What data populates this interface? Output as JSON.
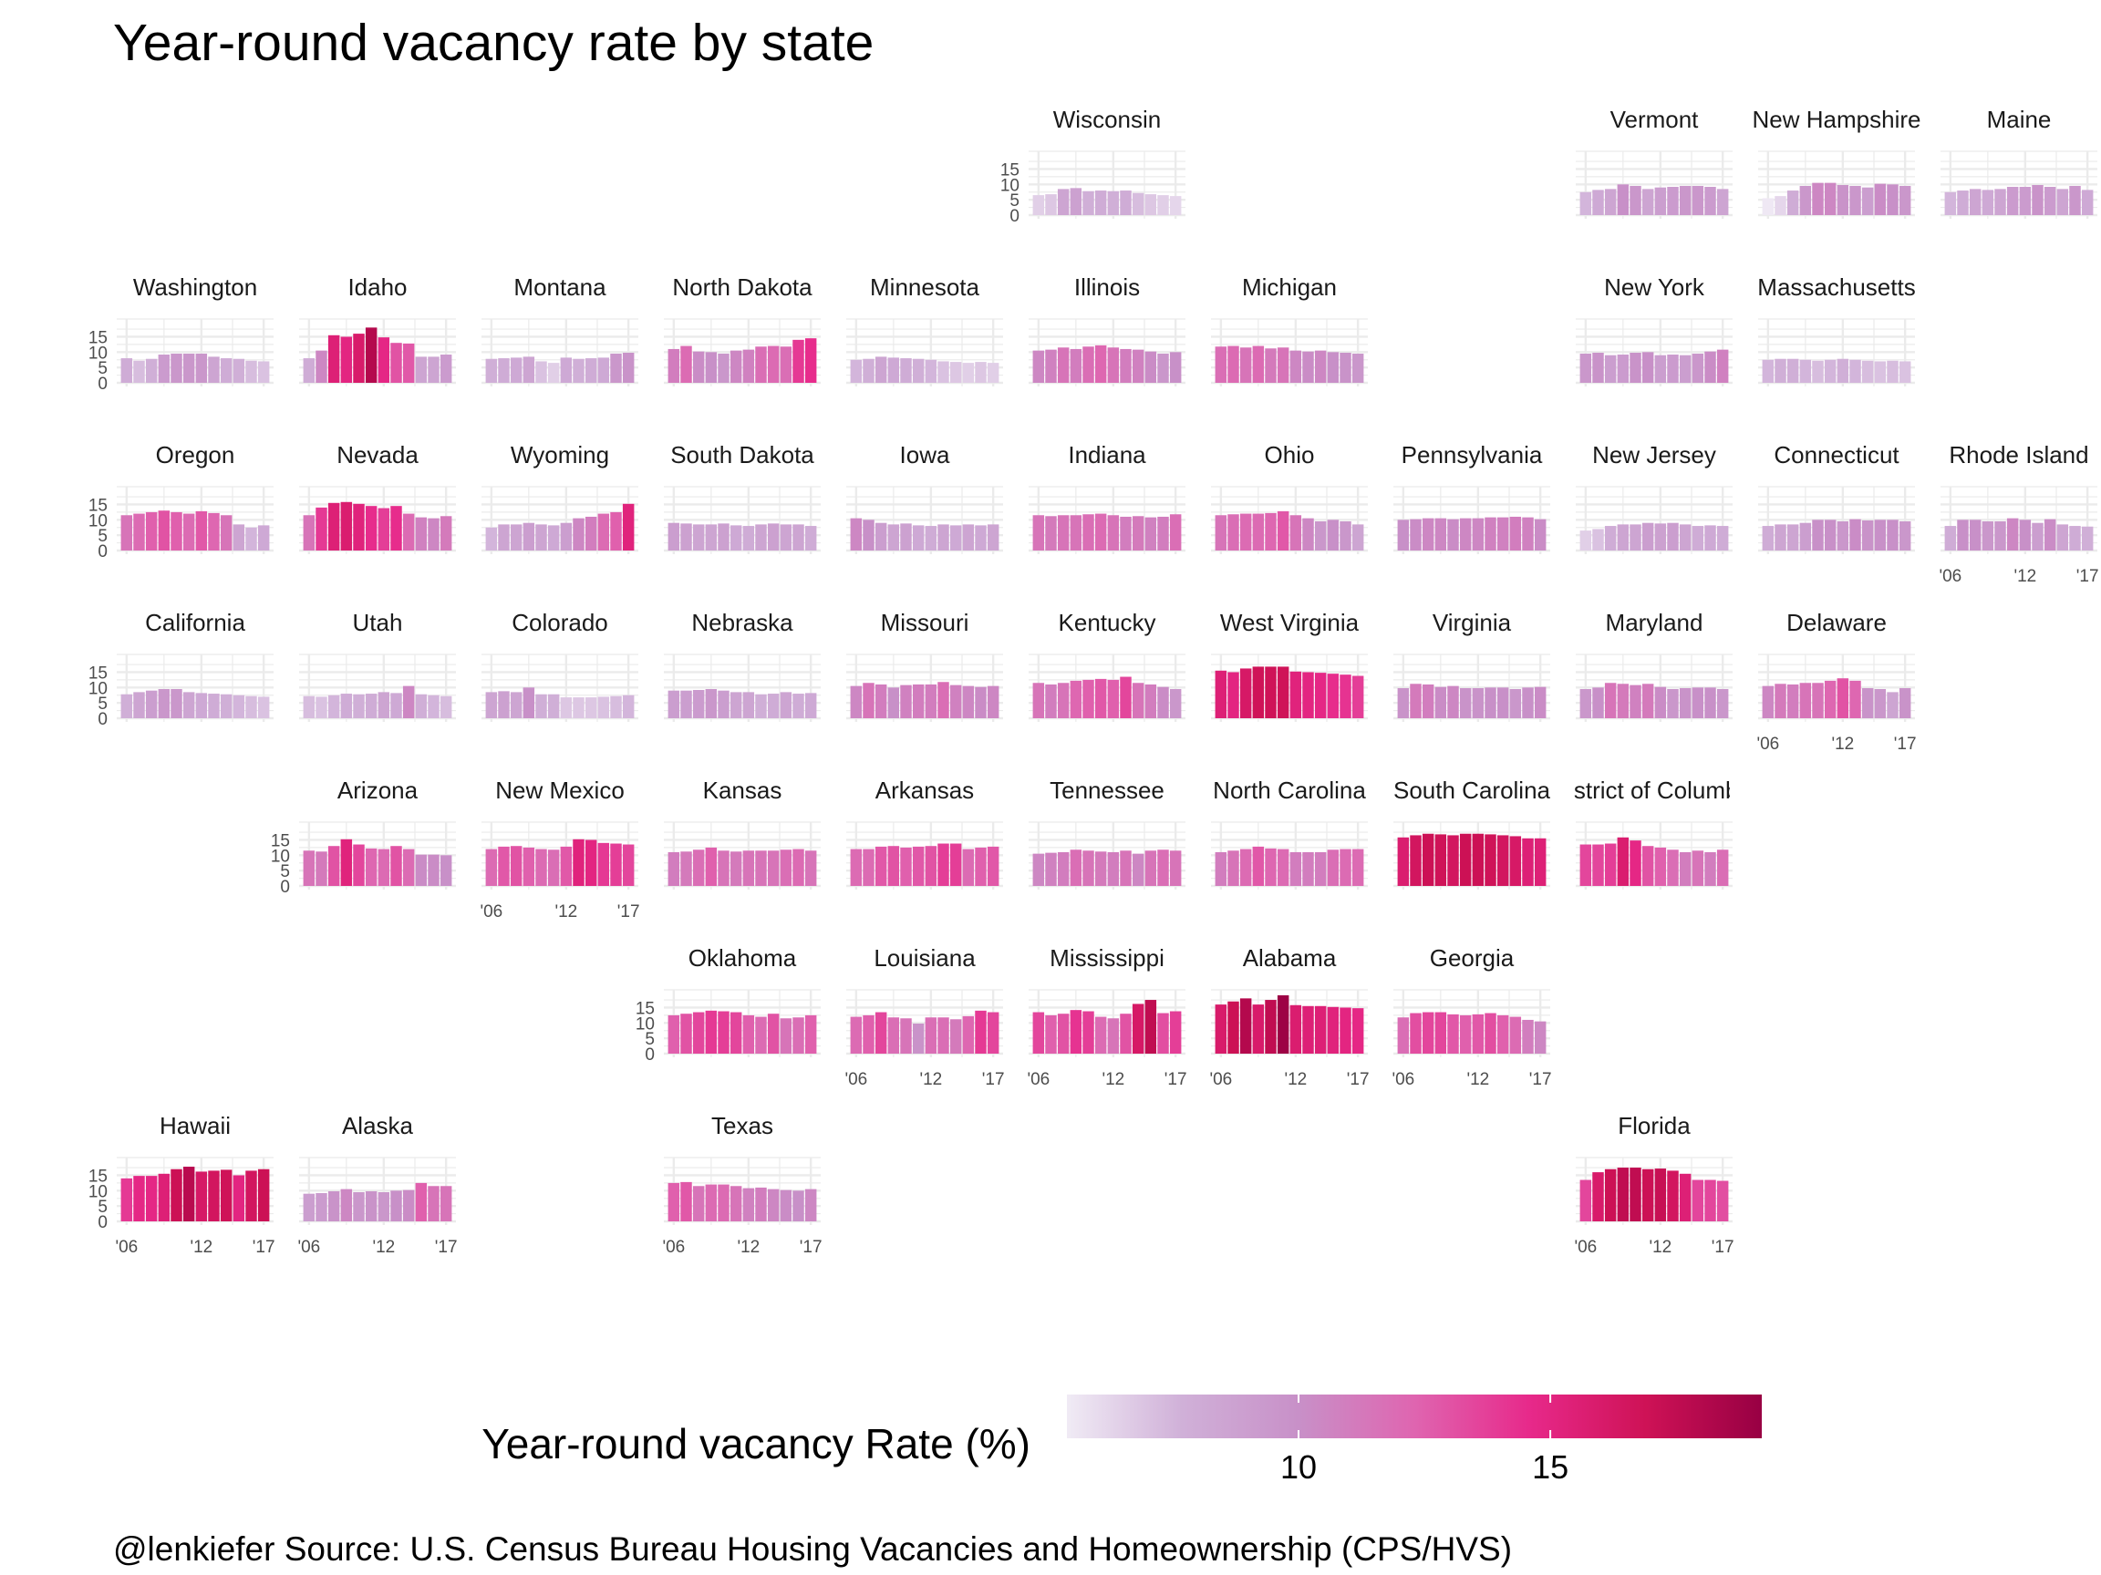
{
  "chart_data": {
    "type": "bar",
    "title": "Year-round vacancy rate by state",
    "caption": "@lenkiefer Source: U.S. Census Bureau Housing Vacancies and Homeownership (CPS/HVS)",
    "years": [
      2006,
      2007,
      2008,
      2009,
      2010,
      2011,
      2012,
      2013,
      2014,
      2015,
      2016,
      2017
    ],
    "y_ticks": [
      0,
      5,
      10,
      15
    ],
    "x_tick_labels": [
      "'06",
      "'12",
      "'17"
    ],
    "ylim": [
      0,
      19
    ],
    "legend": {
      "title": "Year-round vacancy Rate (%)",
      "ticks": [
        10,
        15
      ],
      "range": [
        5.4,
        19.2
      ],
      "colors": [
        "#f0ebf5",
        "#d0b0d8",
        "#c890c8",
        "#df65b0",
        "#e7298a",
        "#ce1256",
        "#980043"
      ]
    },
    "states": [
      {
        "name": "Wisconsin",
        "row": 0,
        "col": 5,
        "values": [
          6.5,
          6.8,
          8.5,
          8.8,
          7.8,
          8.0,
          7.8,
          8.0,
          7.2,
          6.8,
          6.5,
          6.2
        ]
      },
      {
        "name": "Vermont",
        "row": 0,
        "col": 8,
        "values": [
          7.5,
          8.2,
          8.5,
          10.0,
          9.5,
          8.5,
          9.0,
          9.2,
          9.5,
          9.5,
          9.2,
          8.5
        ]
      },
      {
        "name": "New Hampshire",
        "row": 0,
        "col": 9,
        "values": [
          5.5,
          6.2,
          8.0,
          9.5,
          10.5,
          10.5,
          9.8,
          9.5,
          9.0,
          10.2,
          10.0,
          9.5
        ]
      },
      {
        "name": "Maine",
        "row": 0,
        "col": 10,
        "values": [
          7.5,
          8.0,
          8.5,
          8.2,
          8.5,
          9.2,
          9.2,
          9.8,
          9.2,
          8.5,
          9.5,
          8.2
        ]
      },
      {
        "name": "Washington",
        "row": 1,
        "col": 0,
        "values": [
          8.0,
          7.2,
          7.8,
          9.2,
          9.5,
          9.5,
          9.5,
          8.5,
          8.0,
          7.8,
          7.2,
          7.0
        ]
      },
      {
        "name": "Idaho",
        "row": 1,
        "col": 1,
        "values": [
          8.0,
          10.5,
          15.5,
          15.0,
          16.0,
          18.0,
          14.8,
          13.0,
          12.8,
          8.5,
          8.5,
          9.2
        ]
      },
      {
        "name": "Montana",
        "row": 1,
        "col": 2,
        "values": [
          7.8,
          8.0,
          8.2,
          8.5,
          7.0,
          6.5,
          8.2,
          7.8,
          8.0,
          8.2,
          9.5,
          9.8
        ]
      },
      {
        "name": "North Dakota",
        "row": 1,
        "col": 3,
        "values": [
          11.0,
          12.0,
          10.2,
          10.0,
          9.5,
          10.5,
          10.8,
          11.8,
          12.0,
          11.8,
          14.0,
          14.5
        ]
      },
      {
        "name": "Minnesota",
        "row": 1,
        "col": 4,
        "values": [
          7.5,
          7.8,
          8.5,
          8.2,
          8.0,
          7.8,
          7.5,
          7.0,
          6.8,
          6.5,
          6.8,
          6.5
        ]
      },
      {
        "name": "Illinois",
        "row": 1,
        "col": 5,
        "values": [
          10.5,
          10.8,
          11.5,
          11.0,
          11.8,
          12.2,
          11.5,
          11.0,
          10.8,
          10.2,
          9.5,
          10.0
        ]
      },
      {
        "name": "Michigan",
        "row": 1,
        "col": 6,
        "values": [
          11.8,
          12.0,
          11.5,
          12.0,
          11.2,
          11.5,
          10.5,
          10.2,
          10.5,
          10.0,
          9.8,
          9.5
        ]
      },
      {
        "name": "New York",
        "row": 1,
        "col": 8,
        "values": [
          9.5,
          9.8,
          9.0,
          9.2,
          9.8,
          10.0,
          9.0,
          9.2,
          9.0,
          9.5,
          10.2,
          10.8
        ]
      },
      {
        "name": "Massachusetts",
        "row": 1,
        "col": 9,
        "values": [
          7.5,
          7.8,
          7.8,
          7.5,
          7.2,
          7.5,
          7.8,
          7.5,
          7.2,
          7.0,
          7.2,
          7.0
        ]
      },
      {
        "name": "Oregon",
        "row": 2,
        "col": 0,
        "values": [
          11.5,
          12.0,
          12.5,
          13.0,
          12.5,
          12.0,
          12.8,
          12.2,
          11.5,
          8.5,
          7.5,
          8.2
        ]
      },
      {
        "name": "Nevada",
        "row": 2,
        "col": 1,
        "values": [
          11.5,
          14.0,
          15.5,
          15.8,
          15.2,
          14.5,
          13.8,
          14.5,
          12.0,
          10.8,
          10.5,
          11.2
        ]
      },
      {
        "name": "Wyoming",
        "row": 2,
        "col": 2,
        "values": [
          7.5,
          8.5,
          8.5,
          9.0,
          8.5,
          8.2,
          9.0,
          10.5,
          11.0,
          12.0,
          12.5,
          15.2
        ]
      },
      {
        "name": "South Dakota",
        "row": 2,
        "col": 3,
        "values": [
          9.0,
          8.8,
          8.5,
          8.5,
          8.8,
          8.2,
          8.0,
          8.5,
          8.8,
          8.5,
          8.5,
          8.0
        ]
      },
      {
        "name": "Iowa",
        "row": 2,
        "col": 4,
        "values": [
          10.5,
          10.0,
          9.0,
          8.5,
          8.8,
          8.2,
          8.0,
          8.5,
          8.2,
          8.5,
          8.2,
          8.5
        ]
      },
      {
        "name": "Indiana",
        "row": 2,
        "col": 5,
        "values": [
          11.5,
          11.2,
          11.5,
          11.5,
          11.8,
          12.0,
          11.5,
          11.0,
          11.2,
          10.8,
          11.0,
          11.8
        ]
      },
      {
        "name": "Ohio",
        "row": 2,
        "col": 6,
        "values": [
          11.5,
          11.8,
          12.0,
          12.0,
          12.2,
          12.8,
          11.5,
          10.5,
          9.5,
          10.0,
          9.5,
          8.5
        ]
      },
      {
        "name": "Pennsylvania",
        "row": 2,
        "col": 7,
        "values": [
          10.0,
          10.2,
          10.5,
          10.5,
          10.2,
          10.5,
          10.5,
          10.8,
          10.8,
          11.0,
          10.8,
          10.2
        ]
      },
      {
        "name": "New Jersey",
        "row": 2,
        "col": 8,
        "values": [
          6.5,
          7.0,
          8.0,
          8.5,
          8.5,
          9.0,
          8.8,
          9.0,
          8.5,
          8.0,
          8.2,
          8.0
        ]
      },
      {
        "name": "Connecticut",
        "row": 2,
        "col": 9,
        "values": [
          8.0,
          8.5,
          8.5,
          9.0,
          10.0,
          10.0,
          9.5,
          10.2,
          9.8,
          10.0,
          10.0,
          9.5
        ]
      },
      {
        "name": "Rhode Island",
        "row": 2,
        "col": 10,
        "values": [
          8.0,
          10.0,
          10.0,
          9.5,
          9.5,
          10.5,
          10.0,
          9.0,
          10.2,
          8.5,
          8.0,
          7.8
        ]
      },
      {
        "name": "California",
        "row": 3,
        "col": 0,
        "values": [
          7.8,
          8.5,
          9.0,
          9.5,
          9.5,
          8.5,
          8.2,
          8.0,
          7.8,
          7.5,
          7.2,
          7.0
        ]
      },
      {
        "name": "Utah",
        "row": 3,
        "col": 1,
        "values": [
          7.2,
          7.0,
          7.5,
          8.0,
          7.8,
          8.0,
          8.5,
          8.2,
          10.5,
          7.8,
          7.5,
          7.2
        ]
      },
      {
        "name": "Colorado",
        "row": 3,
        "col": 2,
        "values": [
          8.5,
          8.8,
          8.5,
          10.0,
          7.8,
          7.8,
          6.8,
          6.8,
          6.8,
          7.0,
          7.2,
          7.5
        ]
      },
      {
        "name": "Nebraska",
        "row": 3,
        "col": 3,
        "values": [
          9.0,
          9.0,
          9.2,
          9.5,
          9.0,
          8.5,
          8.5,
          7.8,
          8.0,
          8.5,
          8.0,
          8.2
        ]
      },
      {
        "name": "Missouri",
        "row": 3,
        "col": 4,
        "values": [
          10.5,
          11.5,
          11.0,
          10.0,
          10.8,
          11.0,
          11.0,
          11.8,
          10.8,
          10.5,
          10.2,
          10.5
        ]
      },
      {
        "name": "Kentucky",
        "row": 3,
        "col": 5,
        "values": [
          11.5,
          11.0,
          11.5,
          12.2,
          12.5,
          12.8,
          12.5,
          13.5,
          11.5,
          11.0,
          10.2,
          9.5
        ]
      },
      {
        "name": "West Virginia",
        "row": 3,
        "col": 6,
        "values": [
          15.5,
          15.0,
          16.2,
          16.8,
          16.8,
          16.8,
          15.2,
          15.0,
          14.8,
          14.5,
          14.2,
          13.8
        ]
      },
      {
        "name": "Virginia",
        "row": 3,
        "col": 7,
        "values": [
          9.8,
          11.2,
          11.0,
          10.2,
          10.5,
          9.8,
          9.8,
          10.0,
          10.0,
          9.5,
          10.0,
          10.2
        ]
      },
      {
        "name": "Maryland",
        "row": 3,
        "col": 8,
        "values": [
          9.5,
          10.0,
          11.5,
          11.2,
          10.8,
          11.2,
          10.2,
          9.5,
          9.8,
          10.0,
          10.0,
          9.5
        ]
      },
      {
        "name": "Delaware",
        "row": 3,
        "col": 9,
        "values": [
          10.5,
          11.2,
          11.0,
          11.5,
          11.5,
          12.2,
          13.0,
          12.2,
          9.8,
          9.5,
          8.5,
          9.8
        ]
      },
      {
        "name": "Arizona",
        "row": 4,
        "col": 1,
        "values": [
          11.5,
          11.2,
          13.0,
          15.2,
          13.5,
          12.2,
          12.0,
          13.0,
          12.0,
          10.2,
          10.2,
          10.0
        ]
      },
      {
        "name": "New Mexico",
        "row": 4,
        "col": 2,
        "values": [
          12.0,
          12.8,
          13.0,
          12.5,
          12.0,
          11.8,
          12.8,
          15.2,
          15.0,
          14.0,
          13.8,
          13.5
        ]
      },
      {
        "name": "Kansas",
        "row": 4,
        "col": 3,
        "values": [
          11.0,
          11.2,
          11.8,
          12.5,
          11.5,
          11.2,
          11.5,
          11.5,
          11.5,
          11.8,
          12.0,
          11.5
        ]
      },
      {
        "name": "Arkansas",
        "row": 4,
        "col": 4,
        "values": [
          12.0,
          12.0,
          12.8,
          13.0,
          12.5,
          12.8,
          13.0,
          13.8,
          13.8,
          12.0,
          12.5,
          12.8
        ]
      },
      {
        "name": "Tennessee",
        "row": 4,
        "col": 5,
        "values": [
          10.5,
          10.8,
          11.0,
          11.8,
          11.5,
          11.2,
          11.0,
          11.5,
          10.5,
          11.5,
          11.8,
          11.5
        ]
      },
      {
        "name": "North Carolina",
        "row": 4,
        "col": 6,
        "values": [
          11.0,
          11.5,
          12.0,
          12.8,
          12.2,
          12.0,
          11.0,
          11.0,
          11.0,
          11.8,
          12.0,
          12.0
        ]
      },
      {
        "name": "South Carolina",
        "row": 4,
        "col": 7,
        "values": [
          15.8,
          16.5,
          17.0,
          16.8,
          16.5,
          17.0,
          17.0,
          16.8,
          16.5,
          16.2,
          15.5,
          15.5
        ]
      },
      {
        "name": "District of Columbia",
        "row": 4,
        "col": 8,
        "values": [
          13.5,
          13.5,
          13.8,
          15.8,
          14.8,
          13.0,
          12.5,
          11.8,
          11.0,
          11.5,
          11.0,
          11.8
        ]
      },
      {
        "name": "Oklahoma",
        "row": 5,
        "col": 3,
        "values": [
          12.5,
          13.0,
          13.5,
          14.0,
          13.8,
          13.5,
          12.5,
          12.0,
          13.0,
          11.5,
          11.8,
          12.5
        ]
      },
      {
        "name": "Louisiana",
        "row": 5,
        "col": 4,
        "values": [
          12.0,
          12.5,
          13.5,
          11.8,
          11.5,
          9.8,
          11.8,
          11.8,
          11.2,
          12.2,
          14.0,
          13.5
        ]
      },
      {
        "name": "Mississippi",
        "row": 5,
        "col": 5,
        "values": [
          13.5,
          12.5,
          13.0,
          14.2,
          13.8,
          12.0,
          11.5,
          13.0,
          16.2,
          17.5,
          13.2,
          13.8
        ]
      },
      {
        "name": "Alabama",
        "row": 5,
        "col": 6,
        "values": [
          16.0,
          17.0,
          18.0,
          16.0,
          17.5,
          19.0,
          15.8,
          15.5,
          15.5,
          15.2,
          15.0,
          14.8
        ]
      },
      {
        "name": "Georgia",
        "row": 5,
        "col": 7,
        "values": [
          11.8,
          13.2,
          13.5,
          13.5,
          12.8,
          12.5,
          12.8,
          13.2,
          12.5,
          12.0,
          11.0,
          10.5
        ]
      },
      {
        "name": "Hawaii",
        "row": 6,
        "col": 0,
        "values": [
          14.0,
          14.8,
          14.8,
          15.5,
          17.0,
          17.8,
          16.2,
          16.5,
          16.8,
          15.0,
          16.5,
          17.0
        ]
      },
      {
        "name": "Alaska",
        "row": 6,
        "col": 1,
        "values": [
          9.0,
          9.2,
          9.8,
          10.5,
          9.5,
          9.8,
          9.5,
          10.0,
          10.2,
          12.5,
          11.5,
          11.5
        ]
      },
      {
        "name": "Texas",
        "row": 6,
        "col": 3,
        "values": [
          12.5,
          12.8,
          11.5,
          12.0,
          12.0,
          11.5,
          10.8,
          11.0,
          10.5,
          10.2,
          10.0,
          10.5
        ]
      },
      {
        "name": "Florida",
        "row": 6,
        "col": 8,
        "values": [
          13.5,
          16.0,
          17.0,
          17.5,
          17.5,
          17.0,
          17.2,
          16.5,
          15.5,
          13.5,
          13.5,
          13.2
        ]
      }
    ]
  }
}
